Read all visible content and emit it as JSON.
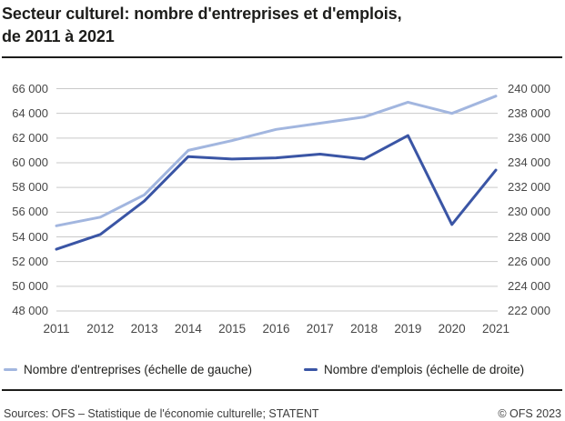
{
  "title": {
    "line1": "Secteur culturel: nombre d'entreprises et d'emplois,",
    "line2": "de 2011 à 2021"
  },
  "chart_data": {
    "type": "line",
    "x": [
      2011,
      2012,
      2013,
      2014,
      2015,
      2016,
      2017,
      2018,
      2019,
      2020,
      2021
    ],
    "series": [
      {
        "name": "Nombre d'entreprises (échelle de gauche)",
        "axis": "left",
        "color": "#a2b6df",
        "values": [
          54900,
          55600,
          57400,
          61000,
          61800,
          62700,
          63200,
          63700,
          64900,
          64000,
          65400
        ]
      },
      {
        "name": "Nombre d'emplois (échelle de droite)",
        "axis": "right",
        "color": "#3a55a5",
        "values": [
          227000,
          228200,
          230900,
          234500,
          234300,
          234400,
          234700,
          234300,
          236200,
          229000,
          233400
        ]
      }
    ],
    "axes": {
      "left": {
        "min": 48000,
        "max": 66000,
        "step": 2000,
        "tick_labels": [
          "66 000",
          "64 000",
          "62 000",
          "60 000",
          "58 000",
          "56 000",
          "54 000",
          "52 000",
          "50 000",
          "48 000"
        ]
      },
      "right": {
        "min": 222000,
        "max": 240000,
        "step": 2000,
        "tick_labels": [
          "240 000",
          "238 000",
          "236 000",
          "234 000",
          "232 000",
          "230 000",
          "228 000",
          "226 000",
          "224 000",
          "222 000"
        ]
      },
      "x_tick_labels": [
        "2011",
        "2012",
        "2013",
        "2014",
        "2015",
        "2016",
        "2017",
        "2018",
        "2019",
        "2020",
        "2021"
      ]
    },
    "grid": true,
    "legend_position": "bottom"
  },
  "footer": {
    "sources": "Sources: OFS – Statistique de l'économie culturelle; STATENT",
    "copyright": "© OFS 2023"
  },
  "colors": {
    "gridline": "#c9c9c9",
    "axis_text": "#474747",
    "title_text": "#1d1d1b",
    "entreprises_line": "#a2b6df",
    "emplois_line": "#3a55a5"
  }
}
